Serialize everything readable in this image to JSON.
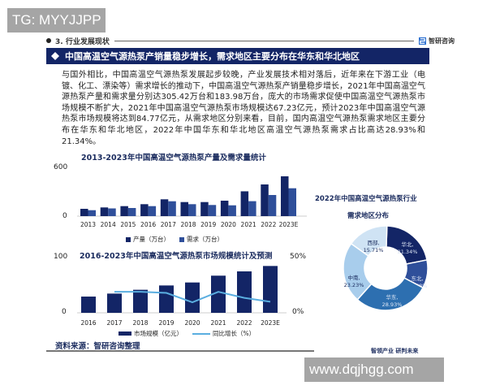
{
  "overlay": {
    "top_tag": "TG: MYYJJPP",
    "bottom_tag": "www.dqjhgg.com"
  },
  "header": {
    "section": "3. 行业发展现状",
    "brand": "智研咨询",
    "headline": "中国高温空气源热泵产销量稳步增长，需求地区主要分布在华东和华北地区"
  },
  "body": {
    "paragraph": "与国外相比，中国高温空气源热泵发展起步较晚，产业发展技术相对落后，近年来在下游工业（电镀、化工、漂染等）需求增长的推动下，中国高温空气源热泵产销量稳步增长，2021年中国高温空气源热泵产量和需求量分别达305.42万台和183.98万台，庞大的市场需求促使中国高温空气源热泵市场规模不断扩大，2021年中国高温空气源热泵市场规模达67.23亿元，预计2023年中国高温空气源热泵市场规模将达到84.77亿元，从需求地区分别来看，目前，国内高温空气源热泵需求地区主要分布在华东和华北地区，2022年中国华东和华北地区高温空气源热泵需求占比高达28.93%和21.34%。"
  },
  "footer": {
    "source": "资料来源：智研咨询整理",
    "tagline": "智领产业 研判未来"
  },
  "colors": {
    "navy": "#132566",
    "mid_blue": "#2f4f9a",
    "line_blue": "#5aaee0"
  },
  "chart_data": [
    {
      "type": "bar",
      "title": "2013-2023年中国高温空气源热泵产量及需求量统计",
      "categories": [
        "2013",
        "2014",
        "2015",
        "2016",
        "2017",
        "2018",
        "2019",
        "2020",
        "2021",
        "2022",
        "2023E"
      ],
      "series": [
        {
          "name": "产量（万台）",
          "color": "#132566",
          "values": [
            90,
            107,
            123,
            147,
            207,
            173,
            173,
            190,
            305.42,
            390,
            490
          ]
        },
        {
          "name": "需求（万台）",
          "color": "#2f4f9a",
          "values": [
            73,
            95,
            100,
            123,
            183,
            147,
            137,
            133,
            183.98,
            260,
            343
          ]
        }
      ],
      "yticks": [
        "0",
        "600"
      ],
      "ylim": [
        0,
        600
      ],
      "legend_position": "bottom"
    },
    {
      "type": "bar+line",
      "title": "2016-2023年中国高温空气源热泵市场规模统计及预测",
      "categories": [
        "2016",
        "2017",
        "2018",
        "2019",
        "2020",
        "2021",
        "2022",
        "2023E"
      ],
      "series": [
        {
          "name": "市场规模（亿元）",
          "type": "bar",
          "axis": "left",
          "color": "#132566",
          "values": [
            29.4,
            34.8,
            41.7,
            49.5,
            54.9,
            67.23,
            75,
            84.77
          ]
        },
        {
          "name": "同比增长（%）",
          "type": "line",
          "axis": "right",
          "color": "#5aaee0",
          "values": [
            null,
            19,
            19,
            18,
            9.5,
            19,
            13.5,
            10
          ]
        }
      ],
      "yticks_left": [
        "0",
        "100"
      ],
      "yticks_right": [
        "0%",
        "50%"
      ],
      "ylim_left": [
        0,
        100
      ],
      "ylim_right": [
        0,
        50
      ],
      "legend_position": "bottom"
    },
    {
      "type": "pie",
      "title": "2022年中国高温空气源热泵行业需求地区分布",
      "title_lines": [
        "2022年中国高温空气源热泵行业",
        "需求地区分布"
      ],
      "slices": [
        {
          "label": "华北",
          "value": 21.34,
          "display": "华北,\n21.34%",
          "color": "#132566"
        },
        {
          "label": "东北",
          "value": 10.78,
          "display": "东北,\n10.78%",
          "color": "#2f4f9a"
        },
        {
          "label": "华东",
          "value": 28.93,
          "display": "华东,\n28.93%",
          "color": "#2d6fb0"
        },
        {
          "label": "中南",
          "value": 23.23,
          "display": "中南,\n23.23%",
          "color": "#a8cdec"
        },
        {
          "label": "西部",
          "value": 15.71,
          "display": "西部,\n15.71%",
          "color": "#cfe3f4"
        }
      ],
      "hole": 0.5
    }
  ]
}
